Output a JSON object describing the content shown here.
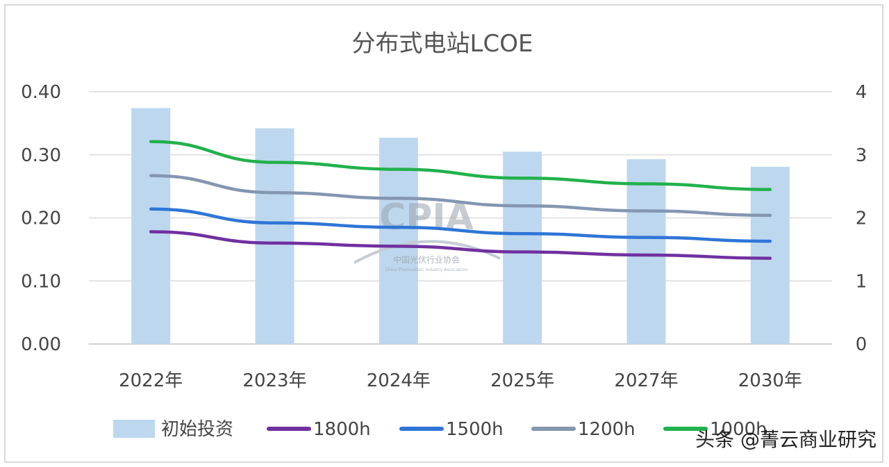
{
  "chart_data": {
    "type": "bar+line",
    "title": "分布式电站LCOE",
    "categories": [
      "2022年",
      "2023年",
      "2024年",
      "2025年",
      "2027年",
      "2030年"
    ],
    "y_left": {
      "ylim": [
        0,
        0.4
      ],
      "ticks": [
        "0.00",
        "0.10",
        "0.20",
        "0.30",
        "0.40"
      ]
    },
    "y_right": {
      "ylim": [
        0,
        4
      ],
      "ticks": [
        "0",
        "1",
        "2",
        "3",
        "4"
      ]
    },
    "grid": true,
    "legend_position": "bottom",
    "bar_series": {
      "name": "初始投资",
      "axis": "right",
      "color": "#bdd7ee",
      "values": [
        3.74,
        3.42,
        3.27,
        3.05,
        2.93,
        2.81
      ]
    },
    "line_series": [
      {
        "name": "1800h",
        "axis": "left",
        "color": "#7030a0",
        "values": [
          0.178,
          0.16,
          0.155,
          0.146,
          0.141,
          0.136
        ]
      },
      {
        "name": "1500h",
        "axis": "left",
        "color": "#2e75d6",
        "values": [
          0.214,
          0.192,
          0.185,
          0.175,
          0.169,
          0.163
        ]
      },
      {
        "name": "1200h",
        "axis": "left",
        "color": "#8496b0",
        "values": [
          0.267,
          0.24,
          0.231,
          0.219,
          0.211,
          0.204
        ]
      },
      {
        "name": "1000h",
        "axis": "left",
        "color": "#22b14c",
        "values": [
          0.321,
          0.288,
          0.277,
          0.263,
          0.254,
          0.245
        ]
      }
    ]
  },
  "watermark": {
    "logo_text": "CPIA",
    "org_text": "中国光伏行业协会",
    "sub_text": "China Photovoltaic Industry Association"
  },
  "credit": "头条 @菁云商业研究"
}
